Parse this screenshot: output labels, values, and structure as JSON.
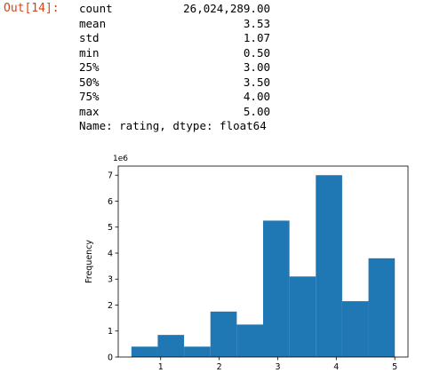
{
  "cell": {
    "prompt_label": "Out[14]:",
    "stats": [
      {
        "label": "count",
        "value": "26,024,289.00"
      },
      {
        "label": "mean",
        "value": "3.53"
      },
      {
        "label": "std",
        "value": "1.07"
      },
      {
        "label": "min",
        "value": "0.50"
      },
      {
        "label": "25%",
        "value": "3.00"
      },
      {
        "label": "50%",
        "value": "3.50"
      },
      {
        "label": "75%",
        "value": "4.00"
      },
      {
        "label": "max",
        "value": "5.00"
      }
    ],
    "footer": "Name: rating, dtype: float64"
  },
  "chart_data": {
    "type": "bar",
    "ylabel": "Frequency",
    "y_scale_label": "1e6",
    "xlim": [
      0.275,
      5.225
    ],
    "ylim": [
      0,
      7.35
    ],
    "x_ticks": [
      "1",
      "2",
      "3",
      "4",
      "5"
    ],
    "y_ticks": [
      "0",
      "1",
      "2",
      "3",
      "4",
      "5",
      "6",
      "7"
    ],
    "bin_edges": [
      0.5,
      0.95,
      1.4,
      1.85,
      2.3,
      2.75,
      3.2,
      3.65,
      4.1,
      4.55,
      5.0
    ],
    "values": [
      0.4,
      0.85,
      0.4,
      1.75,
      1.25,
      5.25,
      3.1,
      7.0,
      2.15,
      3.8
    ],
    "bar_color": "#1f77b4"
  }
}
